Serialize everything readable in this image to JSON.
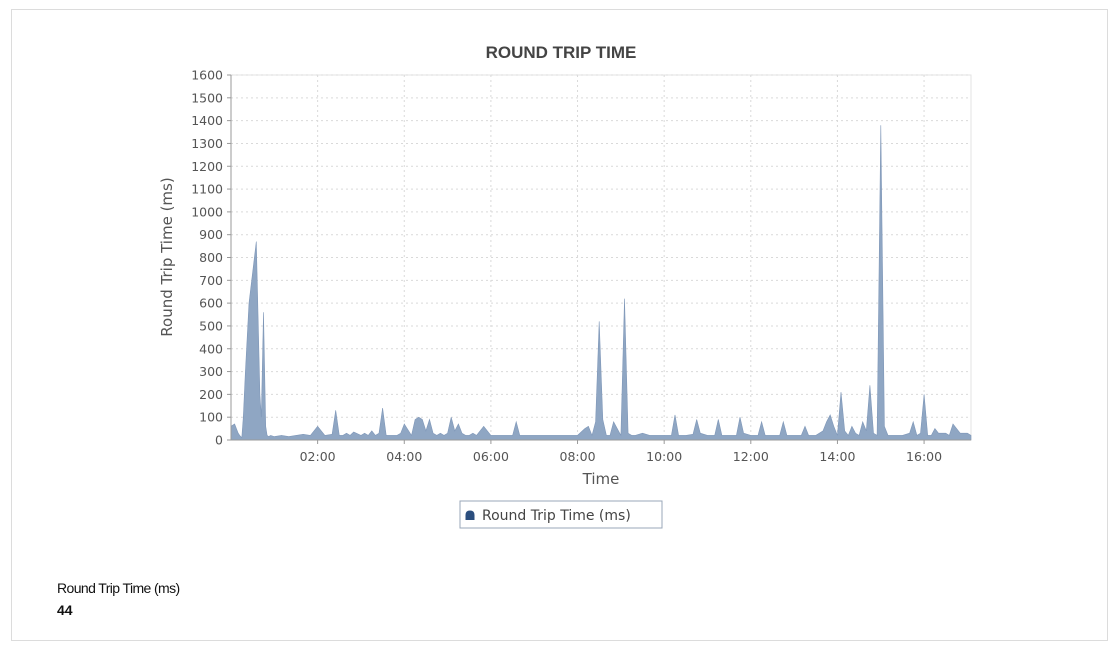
{
  "footer": {
    "metric_label": "Round Trip Time (ms)",
    "metric_value": "44"
  },
  "chart_data": {
    "type": "area",
    "title": "ROUND TRIP TIME",
    "xlabel": "Time",
    "ylabel": "Round Trip Time (ms)",
    "ylim": [
      0,
      1600
    ],
    "yticks": [
      0,
      100,
      200,
      300,
      400,
      500,
      600,
      700,
      800,
      900,
      1000,
      1100,
      1200,
      1300,
      1400,
      1500,
      1600
    ],
    "xlim": [
      "00:00",
      "17:05"
    ],
    "xticks": [
      "02:00",
      "04:00",
      "06:00",
      "08:00",
      "10:00",
      "12:00",
      "14:00",
      "16:00"
    ],
    "grid": true,
    "legend": "bottom-center",
    "color": "#8fa6c3",
    "legend_marker_color": "#2b4e7e",
    "series": [
      {
        "name": "Round Trip Time (ms)",
        "x": [
          "00:00",
          "00:05",
          "00:10",
          "00:12",
          "00:15",
          "00:17",
          "00:20",
          "00:25",
          "00:35",
          "00:40",
          "00:42",
          "00:45",
          "00:48",
          "00:50",
          "00:52",
          "00:55",
          "01:00",
          "01:10",
          "01:20",
          "01:30",
          "01:40",
          "01:50",
          "02:00",
          "02:10",
          "02:20",
          "02:25",
          "02:30",
          "02:35",
          "02:40",
          "02:45",
          "02:50",
          "03:00",
          "03:05",
          "03:10",
          "03:15",
          "03:20",
          "03:25",
          "03:30",
          "03:35",
          "03:40",
          "03:45",
          "03:50",
          "03:55",
          "04:00",
          "04:10",
          "04:15",
          "04:20",
          "04:25",
          "04:30",
          "04:35",
          "04:40",
          "04:45",
          "04:50",
          "04:55",
          "05:00",
          "05:05",
          "05:10",
          "05:15",
          "05:20",
          "05:25",
          "05:30",
          "05:35",
          "05:40",
          "05:50",
          "06:00",
          "06:10",
          "06:20",
          "06:30",
          "06:35",
          "06:40",
          "06:50",
          "07:00",
          "07:10",
          "07:20",
          "07:30",
          "07:40",
          "07:50",
          "08:00",
          "08:10",
          "08:15",
          "08:20",
          "08:25",
          "08:30",
          "08:35",
          "08:40",
          "08:45",
          "08:50",
          "09:00",
          "09:05",
          "09:10",
          "09:15",
          "09:20",
          "09:30",
          "09:40",
          "09:50",
          "10:00",
          "10:10",
          "10:15",
          "10:20",
          "10:30",
          "10:40",
          "10:45",
          "10:50",
          "11:00",
          "11:10",
          "11:15",
          "11:20",
          "11:30",
          "11:40",
          "11:45",
          "11:50",
          "12:00",
          "12:10",
          "12:15",
          "12:20",
          "12:30",
          "12:40",
          "12:45",
          "12:50",
          "13:00",
          "13:10",
          "13:15",
          "13:20",
          "13:30",
          "13:40",
          "13:45",
          "13:50",
          "13:55",
          "14:00",
          "14:05",
          "14:10",
          "14:15",
          "14:20",
          "14:25",
          "14:30",
          "14:35",
          "14:40",
          "14:45",
          "14:50",
          "14:55",
          "15:00",
          "15:05",
          "15:10",
          "15:15",
          "15:20",
          "15:30",
          "15:40",
          "15:45",
          "15:50",
          "15:55",
          "16:00",
          "16:05",
          "16:10",
          "16:15",
          "16:20",
          "16:30",
          "16:35",
          "16:40",
          "16:50",
          "17:00",
          "17:05"
        ],
        "values": [
          60,
          70,
          30,
          20,
          10,
          100,
          300,
          600,
          870,
          200,
          100,
          560,
          60,
          20,
          15,
          20,
          15,
          20,
          15,
          20,
          25,
          20,
          60,
          20,
          25,
          130,
          20,
          20,
          30,
          20,
          35,
          20,
          30,
          20,
          40,
          20,
          30,
          140,
          20,
          20,
          20,
          20,
          30,
          70,
          20,
          90,
          100,
          90,
          40,
          90,
          30,
          20,
          30,
          20,
          30,
          100,
          40,
          70,
          30,
          20,
          20,
          30,
          20,
          60,
          20,
          20,
          20,
          20,
          80,
          20,
          20,
          20,
          20,
          20,
          20,
          20,
          20,
          20,
          50,
          60,
          20,
          80,
          520,
          90,
          20,
          20,
          80,
          20,
          620,
          30,
          20,
          20,
          30,
          20,
          20,
          20,
          20,
          110,
          20,
          20,
          25,
          90,
          30,
          20,
          20,
          90,
          20,
          20,
          20,
          100,
          30,
          20,
          20,
          80,
          20,
          20,
          20,
          80,
          20,
          20,
          20,
          60,
          20,
          20,
          40,
          80,
          110,
          60,
          20,
          210,
          40,
          20,
          60,
          30,
          20,
          80,
          40,
          240,
          30,
          20,
          1380,
          60,
          20,
          20,
          20,
          20,
          30,
          80,
          20,
          30,
          200,
          20,
          20,
          50,
          30,
          30,
          20,
          70,
          30,
          30,
          20
        ]
      }
    ]
  }
}
